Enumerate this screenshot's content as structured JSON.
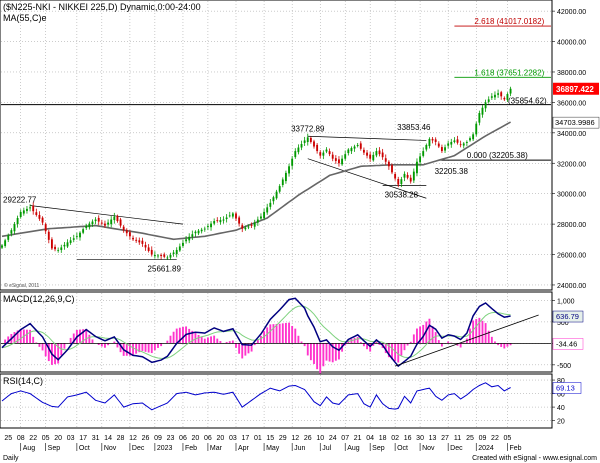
{
  "chart_data": [
    {
      "type": "candlestick",
      "panel": "price",
      "title": "($N225-NKI - NIKKEI 225,D) Dynamic,0:00-24:00",
      "ma_label": "MA(55,C)e",
      "watermark": "© eSignal, 2011",
      "y_ticks": [
        24000,
        26000,
        28000,
        30000,
        32000,
        34000,
        36000,
        38000,
        40000,
        42000
      ],
      "y_tick_labels": [
        "24000.00",
        "26000.00",
        "28000.00",
        "30000.00",
        "32000.00",
        "34000.00",
        "36000.00",
        "38000.00",
        "40000.00",
        "42000.00"
      ],
      "ylim": [
        23800,
        42600
      ],
      "last_price": 36897.422,
      "last_price_label": "36897.422",
      "ma_last_label": "34703.9986",
      "close_keypoints": [
        [
          0,
          26600
        ],
        [
          3,
          27600
        ],
        [
          6,
          28800
        ],
        [
          9,
          29100
        ],
        [
          13,
          28100
        ],
        [
          16,
          26400
        ],
        [
          18,
          26300
        ],
        [
          21,
          26800
        ],
        [
          24,
          27200
        ],
        [
          27,
          27900
        ],
        [
          30,
          28300
        ],
        [
          33,
          27900
        ],
        [
          36,
          28500
        ],
        [
          39,
          27600
        ],
        [
          42,
          27000
        ],
        [
          45,
          26700
        ],
        [
          48,
          26000
        ],
        [
          51,
          25900
        ],
        [
          53,
          25800
        ],
        [
          56,
          26300
        ],
        [
          59,
          27000
        ],
        [
          62,
          27500
        ],
        [
          65,
          27700
        ],
        [
          68,
          28200
        ],
        [
          71,
          28300
        ],
        [
          74,
          28700
        ],
        [
          77,
          27700
        ],
        [
          80,
          27900
        ],
        [
          83,
          28500
        ],
        [
          86,
          29400
        ],
        [
          89,
          30500
        ],
        [
          92,
          31800
        ],
        [
          94,
          32800
        ],
        [
          97,
          33500
        ],
        [
          98,
          33700
        ],
        [
          100,
          33100
        ],
        [
          102,
          32500
        ],
        [
          104,
          32900
        ],
        [
          106,
          32300
        ],
        [
          108,
          32000
        ],
        [
          111,
          32900
        ],
        [
          114,
          33200
        ],
        [
          116,
          32700
        ],
        [
          118,
          32300
        ],
        [
          120,
          32800
        ],
        [
          122,
          32400
        ],
        [
          124,
          31800
        ],
        [
          126,
          31000
        ],
        [
          127,
          30600
        ],
        [
          129,
          31300
        ],
        [
          131,
          30800
        ],
        [
          133,
          32100
        ],
        [
          135,
          32800
        ],
        [
          137,
          33600
        ],
        [
          139,
          33400
        ],
        [
          141,
          32800
        ],
        [
          143,
          33300
        ],
        [
          145,
          33500
        ],
        [
          147,
          33200
        ],
        [
          149,
          33400
        ],
        [
          151,
          33900
        ],
        [
          153,
          35300
        ],
        [
          155,
          36000
        ],
        [
          157,
          36400
        ],
        [
          159,
          36600
        ],
        [
          161,
          36200
        ],
        [
          163,
          36897
        ]
      ],
      "ma_keypoints": [
        [
          0,
          27200
        ],
        [
          15,
          27700
        ],
        [
          30,
          27900
        ],
        [
          45,
          27400
        ],
        [
          55,
          27000
        ],
        [
          65,
          27200
        ],
        [
          75,
          27600
        ],
        [
          85,
          28400
        ],
        [
          95,
          29900
        ],
        [
          105,
          31200
        ],
        [
          115,
          31800
        ],
        [
          125,
          31900
        ],
        [
          135,
          31900
        ],
        [
          145,
          32500
        ],
        [
          155,
          33800
        ],
        [
          163,
          34704
        ]
      ],
      "annotations": [
        {
          "label": "29222.77",
          "x": 9,
          "y": 29222.77
        },
        {
          "label": "25661.89",
          "x": 52,
          "y": 25661.89
        },
        {
          "label": "33772.89",
          "x": 98,
          "y": 33772.89
        },
        {
          "label": "33853.46",
          "x": 132,
          "y": 33853.46
        },
        {
          "label": "30538.28",
          "x": 128,
          "y": 30538.28
        },
        {
          "label": "32205.38",
          "x": 144,
          "y": 32205.38
        }
      ],
      "levels": [
        {
          "label": "2.618 (41017.0182)",
          "value": 41017.0182,
          "color": "#c00000"
        },
        {
          "label": "1.618 (37651.2282)",
          "value": 37651.2282,
          "color": "#009900"
        },
        {
          "label": "0.000 (32205.38)",
          "value": 32205.38,
          "color": "#000000"
        },
        {
          "label": "(35854.62)",
          "value": 35854.62,
          "color": "#000000"
        }
      ],
      "trendlines": [
        {
          "name": "upper-2023a",
          "from": [
            9,
            29222.77
          ],
          "to": [
            58,
            28000
          ]
        },
        {
          "name": "lower-2023a",
          "from": [
            24,
            25661.89
          ],
          "to": [
            56,
            25661.89
          ]
        },
        {
          "name": "upper-2023b",
          "from": [
            98,
            33772.89
          ],
          "to": [
            136,
            33500
          ]
        },
        {
          "name": "lower-2023b",
          "from": [
            98,
            32300
          ],
          "to": [
            136,
            29700
          ]
        },
        {
          "name": "support-2023b",
          "from": [
            122,
            30538.28
          ],
          "to": [
            136,
            30538.28
          ]
        }
      ]
    },
    {
      "type": "line",
      "panel": "macd",
      "title": "MACD(12,26,9,C)",
      "y_ticks": [
        1000,
        500,
        0,
        -500
      ],
      "y_tick_labels": [
        "1,000",
        "500",
        "0",
        "-500"
      ],
      "ylim": [
        -620,
        1150
      ],
      "macd_label": "636.79",
      "hist_label": "-34.46",
      "macd_keypoints": [
        [
          0,
          -100
        ],
        [
          6,
          320
        ],
        [
          9,
          460
        ],
        [
          13,
          150
        ],
        [
          16,
          -250
        ],
        [
          18,
          -380
        ],
        [
          21,
          -150
        ],
        [
          24,
          150
        ],
        [
          27,
          320
        ],
        [
          30,
          160
        ],
        [
          33,
          60
        ],
        [
          36,
          150
        ],
        [
          39,
          -150
        ],
        [
          42,
          -280
        ],
        [
          45,
          -310
        ],
        [
          48,
          -440
        ],
        [
          51,
          -390
        ],
        [
          53,
          -300
        ],
        [
          56,
          0
        ],
        [
          59,
          210
        ],
        [
          62,
          260
        ],
        [
          65,
          240
        ],
        [
          68,
          360
        ],
        [
          71,
          280
        ],
        [
          74,
          340
        ],
        [
          77,
          -30
        ],
        [
          80,
          -40
        ],
        [
          83,
          220
        ],
        [
          86,
          560
        ],
        [
          89,
          780
        ],
        [
          92,
          1020
        ],
        [
          94,
          1050
        ],
        [
          97,
          820
        ],
        [
          98,
          640
        ],
        [
          100,
          380
        ],
        [
          102,
          40
        ],
        [
          104,
          80
        ],
        [
          106,
          -80
        ],
        [
          108,
          -160
        ],
        [
          111,
          90
        ],
        [
          114,
          200
        ],
        [
          116,
          60
        ],
        [
          118,
          -70
        ],
        [
          120,
          80
        ],
        [
          122,
          -40
        ],
        [
          124,
          -260
        ],
        [
          126,
          -440
        ],
        [
          127,
          -530
        ],
        [
          129,
          -420
        ],
        [
          131,
          -300
        ],
        [
          133,
          -20
        ],
        [
          135,
          160
        ],
        [
          137,
          420
        ],
        [
          139,
          330
        ],
        [
          141,
          120
        ],
        [
          143,
          200
        ],
        [
          145,
          170
        ],
        [
          147,
          90
        ],
        [
          149,
          240
        ],
        [
          151,
          640
        ],
        [
          153,
          860
        ],
        [
          155,
          940
        ],
        [
          157,
          810
        ],
        [
          159,
          690
        ],
        [
          161,
          610
        ],
        [
          163,
          637
        ]
      ],
      "signal_lag": 4,
      "trendline": {
        "from": [
          126,
          -530
        ],
        "to": [
          172,
          660
        ]
      }
    },
    {
      "type": "line",
      "panel": "rsi",
      "title": "RSI(14,C)",
      "y_ticks": [
        80,
        60,
        40,
        20
      ],
      "y_tick_labels": [
        "80",
        "60",
        "40",
        "20"
      ],
      "ylim": [
        12,
        86
      ],
      "rsi_label": "69.13",
      "rsi_keypoints": [
        [
          0,
          49
        ],
        [
          3,
          60
        ],
        [
          6,
          64
        ],
        [
          9,
          60
        ],
        [
          13,
          47
        ],
        [
          16,
          41
        ],
        [
          18,
          40
        ],
        [
          21,
          55
        ],
        [
          24,
          58
        ],
        [
          27,
          62
        ],
        [
          30,
          50
        ],
        [
          33,
          46
        ],
        [
          36,
          58
        ],
        [
          39,
          40
        ],
        [
          42,
          45
        ],
        [
          45,
          46
        ],
        [
          48,
          36
        ],
        [
          51,
          42
        ],
        [
          53,
          46
        ],
        [
          56,
          60
        ],
        [
          59,
          62
        ],
        [
          62,
          58
        ],
        [
          65,
          61
        ],
        [
          68,
          62
        ],
        [
          71,
          59
        ],
        [
          74,
          62
        ],
        [
          77,
          40
        ],
        [
          80,
          50
        ],
        [
          83,
          60
        ],
        [
          86,
          68
        ],
        [
          89,
          64
        ],
        [
          92,
          71
        ],
        [
          94,
          72
        ],
        [
          97,
          66
        ],
        [
          98,
          60
        ],
        [
          100,
          48
        ],
        [
          102,
          42
        ],
        [
          104,
          55
        ],
        [
          106,
          46
        ],
        [
          108,
          44
        ],
        [
          111,
          58
        ],
        [
          114,
          60
        ],
        [
          116,
          45
        ],
        [
          118,
          40
        ],
        [
          120,
          58
        ],
        [
          122,
          45
        ],
        [
          124,
          38
        ],
        [
          126,
          37
        ],
        [
          127,
          38
        ],
        [
          129,
          56
        ],
        [
          131,
          46
        ],
        [
          133,
          64
        ],
        [
          135,
          66
        ],
        [
          137,
          68
        ],
        [
          139,
          56
        ],
        [
          141,
          50
        ],
        [
          143,
          58
        ],
        [
          145,
          60
        ],
        [
          147,
          52
        ],
        [
          149,
          58
        ],
        [
          151,
          66
        ],
        [
          153,
          72
        ],
        [
          155,
          76
        ],
        [
          157,
          70
        ],
        [
          159,
          72
        ],
        [
          161,
          64
        ],
        [
          163,
          69
        ]
      ]
    }
  ],
  "x_axis": {
    "day_ticks": [
      {
        "label": "25",
        "x": 2
      },
      {
        "label": "08",
        "x": 6
      },
      {
        "label": "22",
        "x": 10
      },
      {
        "label": "05",
        "x": 14
      },
      {
        "label": "20",
        "x": 18
      },
      {
        "label": "03",
        "x": 22
      },
      {
        "label": "17",
        "x": 26
      },
      {
        "label": "31",
        "x": 30
      },
      {
        "label": "14",
        "x": 34
      },
      {
        "label": "28",
        "x": 38
      },
      {
        "label": "12",
        "x": 42
      },
      {
        "label": "26",
        "x": 46
      },
      {
        "label": "09",
        "x": 50
      },
      {
        "label": "23",
        "x": 54
      },
      {
        "label": "06",
        "x": 58
      },
      {
        "label": "20",
        "x": 62
      },
      {
        "label": "06",
        "x": 66
      },
      {
        "label": "20",
        "x": 70
      },
      {
        "label": "03",
        "x": 74
      },
      {
        "label": "17",
        "x": 78
      },
      {
        "label": "01",
        "x": 82
      },
      {
        "label": "15",
        "x": 86
      },
      {
        "label": "29",
        "x": 90
      },
      {
        "label": "12",
        "x": 94
      },
      {
        "label": "26",
        "x": 98
      },
      {
        "label": "10",
        "x": 102
      },
      {
        "label": "24",
        "x": 106
      },
      {
        "label": "07",
        "x": 110
      },
      {
        "label": "21",
        "x": 114
      },
      {
        "label": "04",
        "x": 118
      },
      {
        "label": "18",
        "x": 122
      },
      {
        "label": "02",
        "x": 126
      },
      {
        "label": "16",
        "x": 130
      },
      {
        "label": "30",
        "x": 134
      },
      {
        "label": "13",
        "x": 138
      },
      {
        "label": "27",
        "x": 142
      },
      {
        "label": "11",
        "x": 146
      },
      {
        "label": "25",
        "x": 150
      },
      {
        "label": "09",
        "x": 154
      },
      {
        "label": "22",
        "x": 158
      },
      {
        "label": "05",
        "x": 162
      }
    ],
    "month_ticks": [
      {
        "label": "Aug",
        "x": 6
      },
      {
        "label": "Sep",
        "x": 14
      },
      {
        "label": "Oct",
        "x": 24
      },
      {
        "label": "Nov",
        "x": 32
      },
      {
        "label": "Dec",
        "x": 41
      },
      {
        "label": "2023",
        "x": 49
      },
      {
        "label": "Feb",
        "x": 58
      },
      {
        "label": "Mar",
        "x": 66
      },
      {
        "label": "Apr",
        "x": 75
      },
      {
        "label": "May",
        "x": 84
      },
      {
        "label": "Jun",
        "x": 93
      },
      {
        "label": "Jul",
        "x": 102
      },
      {
        "label": "Aug",
        "x": 110
      },
      {
        "label": "Sep",
        "x": 118
      },
      {
        "label": "Oct",
        "x": 126
      },
      {
        "label": "Nov",
        "x": 134
      },
      {
        "label": "Dec",
        "x": 143
      },
      {
        "label": "2024",
        "x": 152
      },
      {
        "label": "Feb",
        "x": 162
      }
    ],
    "xlim": [
      0,
      175
    ],
    "footer_left": "Daily",
    "footer_right": "Created with eSignal - www.esignal.com"
  },
  "colors": {
    "up": "#009900",
    "down": "#cc0000",
    "ma": "#666666",
    "macd_line": "#000080",
    "signal_line": "#7fd27f",
    "histogram": "#ff33cc",
    "rsi_line": "#0000cc",
    "zero_line": "#000000",
    "dotted_grid": "#808080",
    "price_box": "#ff0000",
    "indicator_box": "#ffffff",
    "macd_box_bg": "#e6f0ea"
  }
}
